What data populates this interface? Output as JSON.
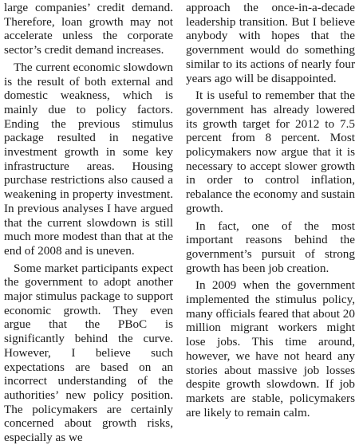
{
  "article": {
    "left_column": [
      "large companies’ credit demand. Therefore, loan growth may not accelerate unless the corporate sec­tor’s credit demand increases.",
      "The current economic slowdown is the result of both external and domestic weakness, which is mainly due to policy factors. Ending the previous stimulus package resulted in negative investment growth in some key infra­structure areas. Housing purchase restrictions also caused a weakening in property investment. In previous analyses I have argued that the cur­rent slowdown is still much more modest than that at the end of 2008 and is uneven.",
      "Some market participants expect the government to adopt another major stimulus package to support economic growth. They even argue that the PBoC is significantly behind the curve. However, I believe such expectations are based on an incor­rect understanding of the authori­ties’ new policy position. The poli­cymakers are certainly concerned about growth risks, especially as we"
    ],
    "right_column": [
      "approach the once-in-a-decade lead­ership transition. But I believe any­body with hopes that the government would do something similar to its actions of nearly four years ago will be disappointed.",
      "It is useful to remember that the government has already lowered its growth target for 2012 to 7.5 percent from 8 percent. Most policymak­ers now argue that it is necessary to accept slower growth in order to con­trol inflation, rebalance the economy and sustain growth.",
      "In fact, one of the most important reasons behind the government’s pursuit of strong growth has been job creation.",
      "In 2009 when the government implemented the stimulus policy, many officials feared that about 20 million migrant workers might lose jobs. This time around, however, we have not heard any stories about massive job losses despite growth slowdown. If job markets are stable, policymakers are likely to remain calm."
    ]
  }
}
